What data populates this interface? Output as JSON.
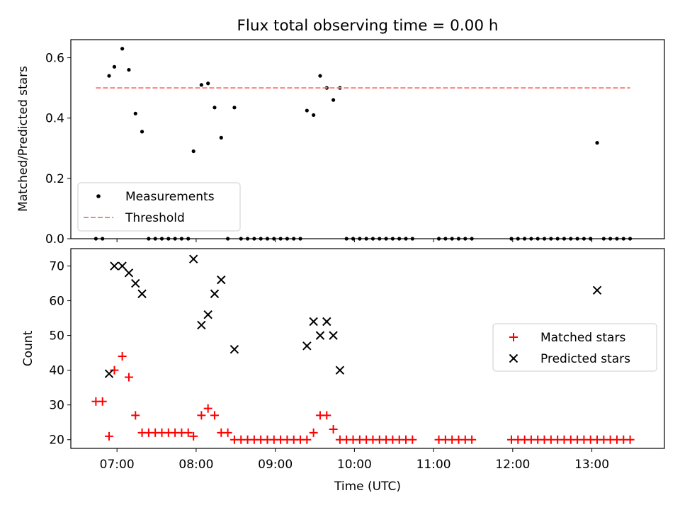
{
  "chart_data": [
    {
      "type": "scatter",
      "title": "Flux total observing time = 0.00 h",
      "ylabel": "Matched/Predicted stars",
      "xlim": [
        "06:25",
        "13:55"
      ],
      "ylim": [
        0,
        0.66
      ],
      "yticks": [
        0.0,
        0.2,
        0.4,
        0.6
      ],
      "ytick_labels": [
        "0.0",
        "0.2",
        "0.4",
        "0.6"
      ],
      "legend_location": "lower-left",
      "series": [
        {
          "name": "Measurements",
          "style": "dot",
          "color": "#000000",
          "points": [
            [
              "06:44",
              0.0
            ],
            [
              "06:49",
              0.0
            ],
            [
              "06:54",
              0.54
            ],
            [
              "06:58",
              0.57
            ],
            [
              "07:04",
              0.63
            ],
            [
              "07:09",
              0.56
            ],
            [
              "07:14",
              0.415
            ],
            [
              "07:19",
              0.355
            ],
            [
              "07:24",
              0.0
            ],
            [
              "07:29",
              0.0
            ],
            [
              "07:34",
              0.0
            ],
            [
              "07:39",
              0.0
            ],
            [
              "07:44",
              0.0
            ],
            [
              "07:49",
              0.0
            ],
            [
              "07:54",
              0.0
            ],
            [
              "07:58",
              0.29
            ],
            [
              "08:04",
              0.51
            ],
            [
              "08:09",
              0.515
            ],
            [
              "08:14",
              0.435
            ],
            [
              "08:19",
              0.335
            ],
            [
              "08:24",
              0.0
            ],
            [
              "08:29",
              0.435
            ],
            [
              "08:34",
              0.0
            ],
            [
              "08:39",
              0.0
            ],
            [
              "08:44",
              0.0
            ],
            [
              "08:49",
              0.0
            ],
            [
              "08:54",
              0.0
            ],
            [
              "08:59",
              0.0
            ],
            [
              "09:04",
              0.0
            ],
            [
              "09:09",
              0.0
            ],
            [
              "09:14",
              0.0
            ],
            [
              "09:19",
              0.0
            ],
            [
              "09:24",
              0.425
            ],
            [
              "09:29",
              0.41
            ],
            [
              "09:34",
              0.54
            ],
            [
              "09:39",
              0.5
            ],
            [
              "09:44",
              0.46
            ],
            [
              "09:49",
              0.5
            ],
            [
              "09:54",
              0.0
            ],
            [
              "09:59",
              0.0
            ],
            [
              "10:04",
              0.0
            ],
            [
              "10:09",
              0.0
            ],
            [
              "10:14",
              0.0
            ],
            [
              "10:19",
              0.0
            ],
            [
              "10:24",
              0.0
            ],
            [
              "10:29",
              0.0
            ],
            [
              "10:34",
              0.0
            ],
            [
              "10:39",
              0.0
            ],
            [
              "10:44",
              0.0
            ],
            [
              "11:04",
              0.0
            ],
            [
              "11:09",
              0.0
            ],
            [
              "11:14",
              0.0
            ],
            [
              "11:19",
              0.0
            ],
            [
              "11:24",
              0.0
            ],
            [
              "11:29",
              0.0
            ],
            [
              "11:59",
              0.0
            ],
            [
              "12:04",
              0.0
            ],
            [
              "12:09",
              0.0
            ],
            [
              "12:14",
              0.0
            ],
            [
              "12:19",
              0.0
            ],
            [
              "12:24",
              0.0
            ],
            [
              "12:29",
              0.0
            ],
            [
              "12:34",
              0.0
            ],
            [
              "12:39",
              0.0
            ],
            [
              "12:44",
              0.0
            ],
            [
              "12:49",
              0.0
            ],
            [
              "12:54",
              0.0
            ],
            [
              "12:59",
              0.0
            ],
            [
              "13:04",
              0.318
            ],
            [
              "13:09",
              0.0
            ],
            [
              "13:14",
              0.0
            ],
            [
              "13:19",
              0.0
            ],
            [
              "13:24",
              0.0
            ],
            [
              "13:29",
              0.0
            ]
          ]
        },
        {
          "name": "Threshold",
          "style": "dashed-line",
          "color": "#ff7f7f",
          "points": [
            [
              "06:44",
              0.5
            ],
            [
              "13:29",
              0.5
            ]
          ]
        }
      ]
    },
    {
      "type": "scatter",
      "xlabel": "Time (UTC)",
      "ylabel": "Count",
      "xlim": [
        "06:25",
        "13:55"
      ],
      "ylim": [
        17.5,
        75
      ],
      "yticks": [
        20,
        30,
        40,
        50,
        60,
        70
      ],
      "ytick_labels": [
        "20",
        "30",
        "40",
        "50",
        "60",
        "70"
      ],
      "xticks": [
        "07:00",
        "08:00",
        "09:00",
        "10:00",
        "11:00",
        "12:00",
        "13:00"
      ],
      "xtick_labels": [
        "07:00",
        "08:00",
        "09:00",
        "10:00",
        "11:00",
        "12:00",
        "13:00"
      ],
      "legend_location": "center-right",
      "series": [
        {
          "name": "Matched stars",
          "style": "plus",
          "color": "#ff0000",
          "points": [
            [
              "06:44",
              31
            ],
            [
              "06:49",
              31
            ],
            [
              "06:54",
              21
            ],
            [
              "06:58",
              40
            ],
            [
              "07:04",
              44
            ],
            [
              "07:09",
              38
            ],
            [
              "07:14",
              27
            ],
            [
              "07:19",
              22
            ],
            [
              "07:24",
              22
            ],
            [
              "07:29",
              22
            ],
            [
              "07:34",
              22
            ],
            [
              "07:39",
              22
            ],
            [
              "07:44",
              22
            ],
            [
              "07:49",
              22
            ],
            [
              "07:54",
              22
            ],
            [
              "07:58",
              21
            ],
            [
              "08:04",
              27
            ],
            [
              "08:09",
              29
            ],
            [
              "08:14",
              27
            ],
            [
              "08:19",
              22
            ],
            [
              "08:24",
              22
            ],
            [
              "08:29",
              20
            ],
            [
              "08:34",
              20
            ],
            [
              "08:39",
              20
            ],
            [
              "08:44",
              20
            ],
            [
              "08:49",
              20
            ],
            [
              "08:54",
              20
            ],
            [
              "08:59",
              20
            ],
            [
              "09:04",
              20
            ],
            [
              "09:09",
              20
            ],
            [
              "09:14",
              20
            ],
            [
              "09:19",
              20
            ],
            [
              "09:24",
              20
            ],
            [
              "09:29",
              22
            ],
            [
              "09:34",
              27
            ],
            [
              "09:39",
              27
            ],
            [
              "09:44",
              23
            ],
            [
              "09:49",
              20
            ],
            [
              "09:54",
              20
            ],
            [
              "09:59",
              20
            ],
            [
              "10:04",
              20
            ],
            [
              "10:09",
              20
            ],
            [
              "10:14",
              20
            ],
            [
              "10:19",
              20
            ],
            [
              "10:24",
              20
            ],
            [
              "10:29",
              20
            ],
            [
              "10:34",
              20
            ],
            [
              "10:39",
              20
            ],
            [
              "10:44",
              20
            ],
            [
              "11:04",
              20
            ],
            [
              "11:09",
              20
            ],
            [
              "11:14",
              20
            ],
            [
              "11:19",
              20
            ],
            [
              "11:24",
              20
            ],
            [
              "11:29",
              20
            ],
            [
              "11:59",
              20
            ],
            [
              "12:04",
              20
            ],
            [
              "12:09",
              20
            ],
            [
              "12:14",
              20
            ],
            [
              "12:19",
              20
            ],
            [
              "12:24",
              20
            ],
            [
              "12:29",
              20
            ],
            [
              "12:34",
              20
            ],
            [
              "12:39",
              20
            ],
            [
              "12:44",
              20
            ],
            [
              "12:49",
              20
            ],
            [
              "12:54",
              20
            ],
            [
              "12:59",
              20
            ],
            [
              "13:04",
              20
            ],
            [
              "13:09",
              20
            ],
            [
              "13:14",
              20
            ],
            [
              "13:19",
              20
            ],
            [
              "13:24",
              20
            ],
            [
              "13:29",
              20
            ]
          ]
        },
        {
          "name": "Predicted stars",
          "style": "x",
          "color": "#000000",
          "points": [
            [
              "06:54",
              39
            ],
            [
              "06:58",
              70
            ],
            [
              "07:04",
              70
            ],
            [
              "07:09",
              68
            ],
            [
              "07:14",
              65
            ],
            [
              "07:19",
              62
            ],
            [
              "07:58",
              72
            ],
            [
              "08:04",
              53
            ],
            [
              "08:09",
              56
            ],
            [
              "08:14",
              62
            ],
            [
              "08:19",
              66
            ],
            [
              "08:29",
              46
            ],
            [
              "09:24",
              47
            ],
            [
              "09:29",
              54
            ],
            [
              "09:34",
              50
            ],
            [
              "09:39",
              54
            ],
            [
              "09:44",
              50
            ],
            [
              "09:49",
              40
            ],
            [
              "13:04",
              63
            ]
          ]
        }
      ]
    }
  ]
}
